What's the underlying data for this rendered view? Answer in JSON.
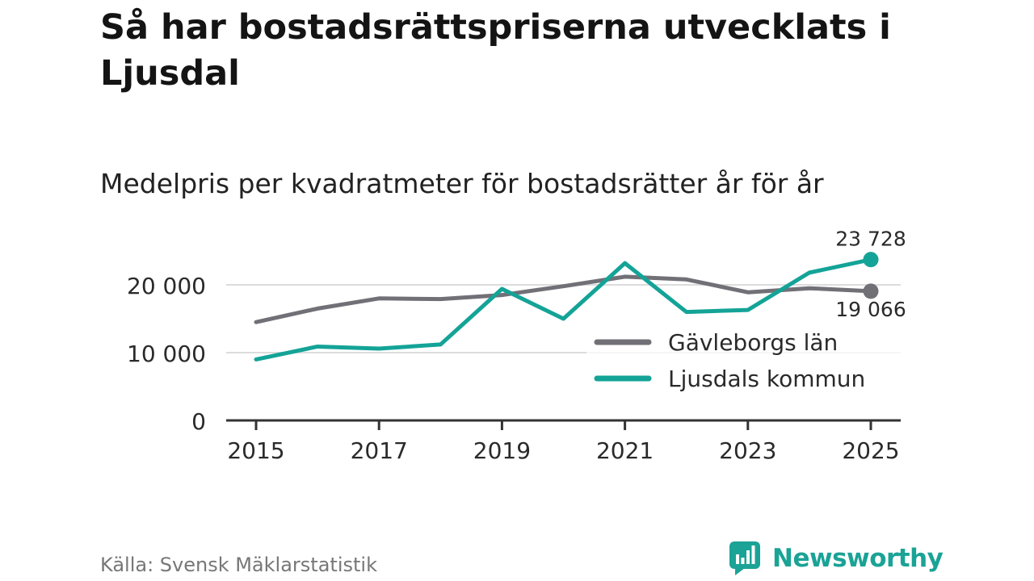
{
  "header": {
    "title": "Så har bostadsrättspriserna utvecklats i Ljusdal",
    "subtitle": "Medelpris per kvadratmeter för bostadsrätter år för år"
  },
  "chart_data": {
    "type": "line",
    "title": "Medelpris per kvadratmeter för bostadsrätter år för år",
    "xlabel": "",
    "ylabel": "",
    "x": [
      2015,
      2016,
      2017,
      2018,
      2019,
      2020,
      2021,
      2022,
      2023,
      2024,
      2025
    ],
    "x_tick_values": [
      2015,
      2017,
      2019,
      2021,
      2023,
      2025
    ],
    "x_tick_labels": [
      "2015",
      "2017",
      "2019",
      "2021",
      "2023",
      "2025"
    ],
    "y_ticks": [
      0,
      10000,
      20000
    ],
    "y_tick_labels": [
      "0",
      "10 000",
      "20 000"
    ],
    "ylim": [
      0,
      25000
    ],
    "grid": true,
    "legend_position": "bottom-right",
    "series": [
      {
        "name": "Gävleborgs län",
        "color": "#727077",
        "values": [
          14500,
          16500,
          18000,
          17900,
          18500,
          19800,
          21200,
          20800,
          18900,
          19500,
          19066
        ],
        "end_label": "19 066"
      },
      {
        "name": "Ljusdals kommun",
        "color": "#14a397",
        "values": [
          9000,
          10900,
          10600,
          11200,
          19400,
          15000,
          23200,
          16000,
          16300,
          21800,
          23728
        ],
        "end_label": "23 728"
      }
    ]
  },
  "footer": {
    "source": "Källa: Svensk Mäklarstatistik",
    "brand": "Newsworthy",
    "brand_color": "#1aa396",
    "brand_icon": "newsworthy-logo-icon"
  }
}
